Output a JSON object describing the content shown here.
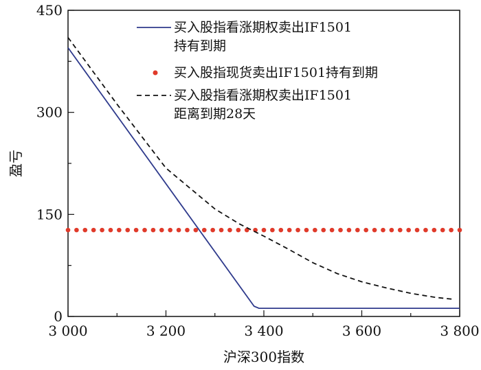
{
  "chart_data": {
    "type": "line",
    "title": "",
    "xlabel": "沪深300指数",
    "ylabel": "盈亏",
    "xlim": [
      3000,
      3800
    ],
    "ylim": [
      0,
      450
    ],
    "x_ticks": [
      3000,
      3200,
      3400,
      3600,
      3800
    ],
    "x_tick_labels": [
      "3 000",
      "3 200",
      "3 400",
      "3 600",
      "3 800"
    ],
    "y_ticks": [
      0,
      150,
      300,
      450
    ],
    "y_tick_labels": [
      "0",
      "150",
      "300",
      "450"
    ],
    "grid": false,
    "legend_position": "top-right",
    "series": [
      {
        "name": "买入股指看涨期权卖出IF1501持有到期",
        "legend_lines": [
          "买入股指看涨期权卖出IF1501",
          "持有到期"
        ],
        "style": "solid",
        "color": "#2e3a8c",
        "x": [
          3000,
          3380,
          3390,
          3800
        ],
        "y": [
          395,
          15,
          12,
          12
        ]
      },
      {
        "name": "买入股指现货卖出IF1501持有到期",
        "legend_lines": [
          "买入股指现货卖出IF1501持有到期"
        ],
        "style": "dotted",
        "color": "#e03a2a",
        "x": [
          3000,
          3800
        ],
        "y": [
          127,
          127
        ]
      },
      {
        "name": "买入股指看涨期权卖出IF1501距离到期28天",
        "legend_lines": [
          "买入股指看涨期权卖出IF1501",
          "距离到期28天"
        ],
        "style": "dashed",
        "color": "#111111",
        "x": [
          3000,
          3100,
          3200,
          3300,
          3350,
          3400,
          3450,
          3500,
          3550,
          3600,
          3650,
          3700,
          3750,
          3790
        ],
        "y": [
          410,
          312,
          218,
          158,
          136,
          118,
          99,
          79,
          63,
          51,
          42,
          34,
          28,
          25
        ]
      }
    ]
  }
}
